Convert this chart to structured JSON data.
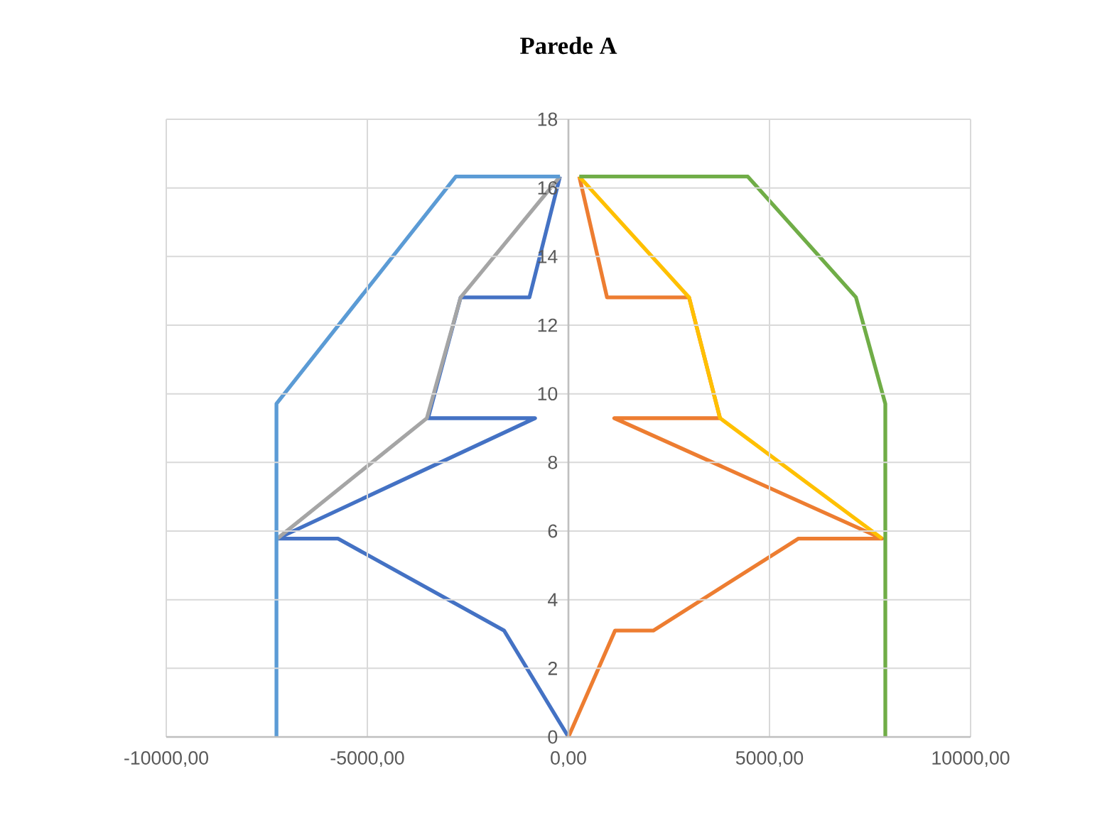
{
  "chart_data": {
    "type": "line",
    "title": "Parede A",
    "xlim": [
      -10000,
      10000
    ],
    "ylim": [
      0,
      18
    ],
    "xticks": [
      {
        "value": -10000,
        "label": "-10000,00"
      },
      {
        "value": -5000,
        "label": "-5000,00"
      },
      {
        "value": 0,
        "label": "0,00"
      },
      {
        "value": 5000,
        "label": "5000,00"
      },
      {
        "value": 10000,
        "label": "10000,00"
      }
    ],
    "yticks": [
      0,
      2,
      4,
      6,
      8,
      10,
      12,
      14,
      16,
      18
    ],
    "grid": true,
    "marker": "none",
    "line_style": "solid",
    "series": [
      {
        "color": "#4472c4",
        "x": [
          0,
          -1600,
          -5730,
          -7240,
          -830,
          -3490,
          -2680,
          -970,
          -210
        ],
        "values": [
          0,
          3.1,
          5.78,
          5.78,
          9.29,
          9.29,
          12.81,
          12.81,
          16.33
        ]
      },
      {
        "color": "#ed7d31",
        "x": [
          0,
          1160,
          2110,
          5720,
          7800,
          1140,
          3770,
          3000,
          960,
          270
        ],
        "values": [
          0,
          3.1,
          3.1,
          5.78,
          5.78,
          9.29,
          9.29,
          12.81,
          12.81,
          16.33
        ]
      },
      {
        "color": "#a5a5a5",
        "x": [
          -7240,
          -3520,
          -2680,
          -210
        ],
        "values": [
          5.78,
          9.29,
          12.81,
          16.33
        ]
      },
      {
        "color": "#ffc000",
        "x": [
          270,
          3000,
          3770,
          7800
        ],
        "values": [
          16.33,
          12.81,
          9.29,
          5.78
        ]
      },
      {
        "color": "#5b9bd5",
        "x": [
          -7260,
          -7260,
          -2800,
          -210
        ],
        "values": [
          0,
          9.71,
          16.33,
          16.33
        ]
      },
      {
        "color": "#70ad47",
        "x": [
          270,
          4460,
          7150,
          7880,
          7880
        ],
        "values": [
          16.33,
          16.33,
          12.81,
          9.71,
          0
        ]
      }
    ]
  }
}
